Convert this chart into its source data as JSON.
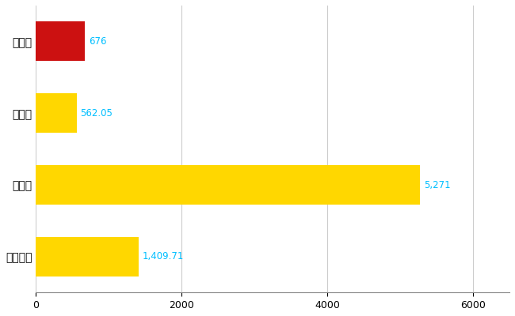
{
  "categories": [
    "五條市",
    "県平均",
    "県最大",
    "全国平均"
  ],
  "values": [
    676,
    562.05,
    5271,
    1409.71
  ],
  "bar_colors": [
    "#CC1111",
    "#FFD700",
    "#FFD700",
    "#FFD700"
  ],
  "value_labels": [
    "676",
    "562.05",
    "5,271",
    "1,409.71"
  ],
  "xlim": [
    0,
    6500
  ],
  "xticks": [
    0,
    2000,
    4000,
    6000
  ],
  "background_color": "#FFFFFF",
  "grid_color": "#CCCCCC",
  "label_color": "#00BFFF",
  "bar_height": 0.55,
  "figsize": [
    6.5,
    4.0
  ],
  "dpi": 100
}
